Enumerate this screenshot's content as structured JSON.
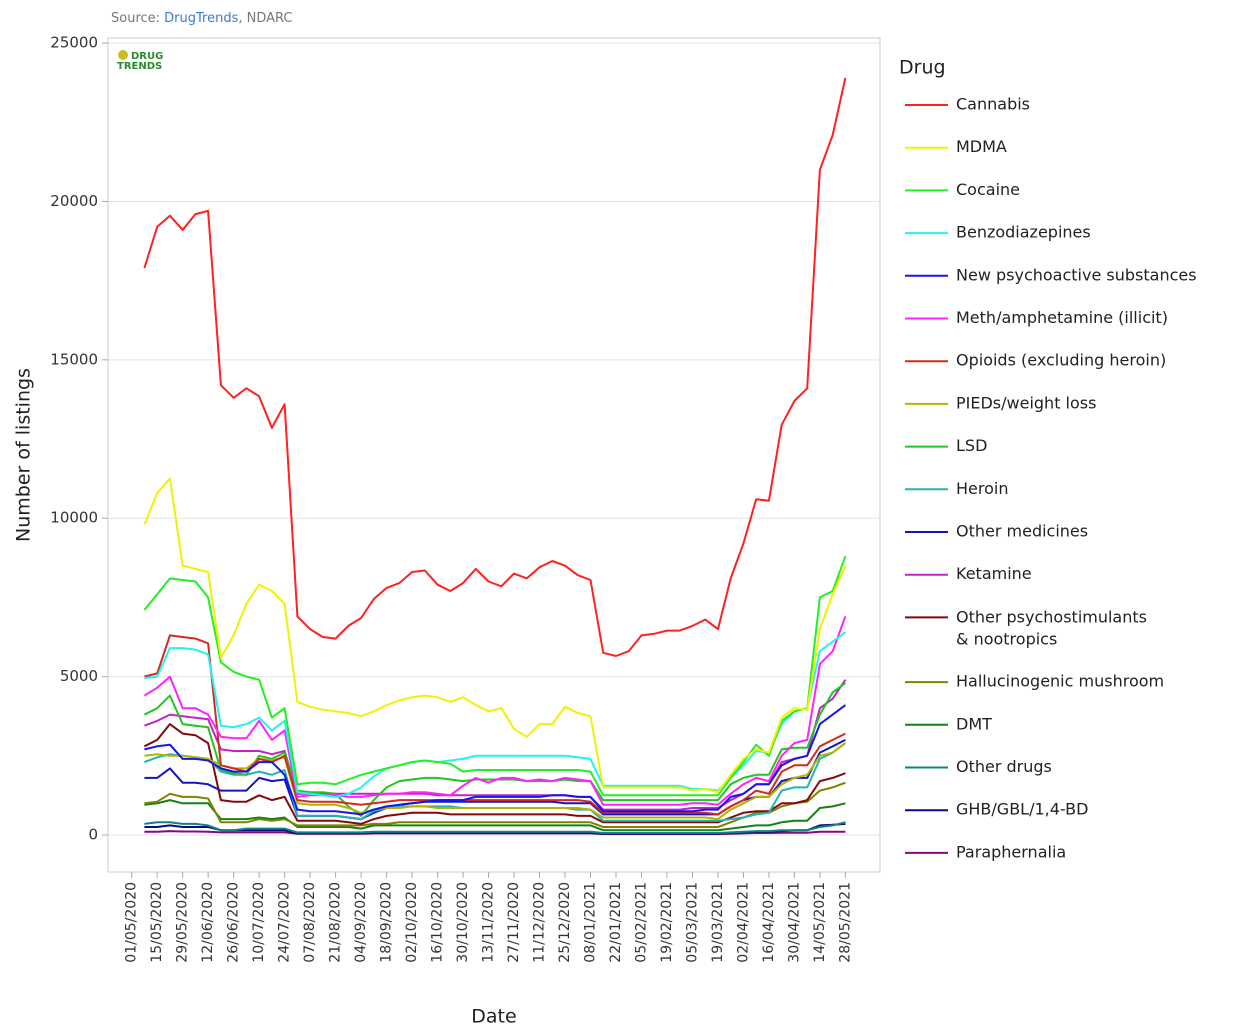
{
  "source": {
    "label": "Source:",
    "link": "DrugTrends",
    "suffix": ", NDARC"
  },
  "logo": [
    "DRUG",
    "TRENDS"
  ],
  "chart_data": {
    "type": "line",
    "xlabel": "Date",
    "ylabel": "Number of listings",
    "legend_title": "Drug",
    "legend": "right",
    "grid": true,
    "xlim": [
      "18/04/2020",
      "16/06/2021"
    ],
    "ylim": [
      -1170,
      25160
    ],
    "yticks": [
      0,
      5000,
      10000,
      15000,
      20000,
      25000
    ],
    "xticks": [
      "01/05/2020",
      "15/05/2020",
      "29/05/2020",
      "12/06/2020",
      "26/06/2020",
      "10/07/2020",
      "24/07/2020",
      "07/08/2020",
      "21/08/2020",
      "04/09/2020",
      "18/09/2020",
      "02/10/2020",
      "16/10/2020",
      "30/10/2020",
      "13/11/2020",
      "27/11/2020",
      "11/12/2020",
      "25/12/2020",
      "08/01/2021",
      "22/01/2021",
      "05/02/2021",
      "19/02/2021",
      "05/03/2021",
      "19/03/2021",
      "02/04/2021",
      "16/04/2021",
      "30/04/2021",
      "14/05/2021",
      "28/05/2021"
    ],
    "x": [
      "08/05/2020",
      "15/05/2020",
      "22/05/2020",
      "29/05/2020",
      "05/06/2020",
      "12/06/2020",
      "19/06/2020",
      "26/06/2020",
      "03/07/2020",
      "10/07/2020",
      "17/07/2020",
      "24/07/2020",
      "31/07/2020",
      "07/08/2020",
      "14/08/2020",
      "21/08/2020",
      "28/08/2020",
      "04/09/2020",
      "11/09/2020",
      "18/09/2020",
      "25/09/2020",
      "02/10/2020",
      "09/10/2020",
      "16/10/2020",
      "23/10/2020",
      "30/10/2020",
      "06/11/2020",
      "13/11/2020",
      "20/11/2020",
      "27/11/2020",
      "04/12/2020",
      "11/12/2020",
      "18/12/2020",
      "25/12/2020",
      "01/01/2021",
      "08/01/2021",
      "15/01/2021",
      "22/01/2021",
      "29/01/2021",
      "05/02/2021",
      "12/02/2021",
      "19/02/2021",
      "26/02/2021",
      "05/03/2021",
      "12/03/2021",
      "19/03/2021",
      "26/03/2021",
      "02/04/2021",
      "09/04/2021",
      "16/04/2021",
      "23/04/2021",
      "30/04/2021",
      "07/05/2021",
      "14/05/2021",
      "21/05/2021",
      "28/05/2021"
    ],
    "series": [
      {
        "name": "Cannabis",
        "color": "#ff2020",
        "values": [
          17900,
          19200,
          19550,
          19100,
          19600,
          19700,
          14200,
          13800,
          14100,
          13850,
          12850,
          13600,
          6900,
          6500,
          6250,
          6200,
          6600,
          6850,
          7450,
          7800,
          7950,
          8300,
          8350,
          7900,
          7700,
          7950,
          8400,
          8000,
          7850,
          8250,
          8100,
          8450,
          8650,
          8500,
          8200,
          8050,
          5750,
          5650,
          5800,
          6300,
          6350,
          6450,
          6450,
          6600,
          6800,
          6500,
          8100,
          9200,
          10600,
          10550,
          12950,
          13700,
          14100,
          21000,
          22100,
          23900
        ]
      },
      {
        "name": "MDMA",
        "color": "#f2f200",
        "values": [
          9800,
          10800,
          11250,
          8500,
          8400,
          8300,
          5600,
          6300,
          7300,
          7900,
          7700,
          7300,
          4200,
          4050,
          3950,
          3900,
          3850,
          3750,
          3900,
          4100,
          4250,
          4350,
          4400,
          4350,
          4200,
          4350,
          4100,
          3900,
          4000,
          3350,
          3100,
          3500,
          3500,
          4050,
          3850,
          3750,
          1500,
          1500,
          1500,
          1500,
          1500,
          1500,
          1500,
          1400,
          1450,
          1350,
          1900,
          2400,
          2700,
          2600,
          3700,
          4000,
          3950,
          6500,
          7600,
          8500
        ]
      },
      {
        "name": "Cocaine",
        "color": "#22f022",
        "values": [
          7100,
          7600,
          8100,
          8050,
          8000,
          7500,
          5450,
          5150,
          5000,
          4900,
          3700,
          4000,
          1600,
          1650,
          1650,
          1600,
          1750,
          1900,
          2000,
          2100,
          2200,
          2300,
          2350,
          2300,
          2250,
          2000,
          2050,
          2050,
          2050,
          2050,
          2050,
          2050,
          2050,
          2050,
          2050,
          2000,
          1250,
          1250,
          1250,
          1250,
          1250,
          1250,
          1250,
          1250,
          1250,
          1250,
          1800,
          2300,
          2850,
          2500,
          3600,
          3900,
          4000,
          7500,
          7700,
          8800
        ]
      },
      {
        "name": "Benzodiazepines",
        "color": "#22f2f2",
        "values": [
          4950,
          5000,
          5900,
          5900,
          5850,
          5700,
          3450,
          3400,
          3500,
          3700,
          3300,
          3600,
          1350,
          1300,
          1250,
          1200,
          1300,
          1500,
          1850,
          2100,
          2200,
          2300,
          2350,
          2300,
          2350,
          2400,
          2500,
          2500,
          2500,
          2500,
          2500,
          2500,
          2500,
          2500,
          2450,
          2400,
          1550,
          1550,
          1550,
          1550,
          1550,
          1550,
          1550,
          1450,
          1450,
          1400,
          1800,
          2200,
          2650,
          2600,
          3500,
          3900,
          4000,
          5800,
          6100,
          6400
        ]
      },
      {
        "name": "New psychoactive substances",
        "color": "#1515ee",
        "values": [
          2700,
          2800,
          2850,
          2400,
          2400,
          2350,
          2100,
          2000,
          2000,
          2300,
          2300,
          1900,
          800,
          750,
          750,
          750,
          700,
          650,
          800,
          900,
          950,
          1000,
          1050,
          1100,
          1100,
          1100,
          1200,
          1200,
          1200,
          1200,
          1200,
          1200,
          1250,
          1250,
          1200,
          1200,
          750,
          750,
          750,
          750,
          750,
          750,
          750,
          750,
          800,
          800,
          1200,
          1300,
          1600,
          1600,
          2200,
          2400,
          2500,
          3500,
          3800,
          4100
        ]
      },
      {
        "name": "Meth/amphetamine (illicit)",
        "color": "#ff22ff",
        "values": [
          4400,
          4650,
          5000,
          4000,
          4000,
          3800,
          3100,
          3050,
          3050,
          3600,
          3000,
          3300,
          1200,
          1250,
          1250,
          1250,
          1200,
          1200,
          1250,
          1300,
          1300,
          1350,
          1350,
          1300,
          1250,
          1550,
          1800,
          1650,
          1800,
          1800,
          1700,
          1750,
          1700,
          1800,
          1750,
          1700,
          950,
          950,
          950,
          950,
          950,
          950,
          950,
          1000,
          1000,
          950,
          1300,
          1600,
          1800,
          1700,
          2500,
          2900,
          3000,
          5400,
          5800,
          6900
        ]
      },
      {
        "name": "Opioids (excluding heroin)",
        "color": "#d42a1e",
        "values": [
          5000,
          5100,
          6300,
          6250,
          6200,
          6050,
          2200,
          2100,
          2000,
          2400,
          2300,
          2500,
          1100,
          1050,
          1050,
          1050,
          1000,
          950,
          1000,
          1050,
          1100,
          1100,
          1100,
          1100,
          1100,
          1100,
          1100,
          1100,
          1100,
          1100,
          1100,
          1100,
          1100,
          1100,
          1100,
          1050,
          700,
          700,
          700,
          700,
          700,
          700,
          700,
          700,
          700,
          650,
          900,
          1100,
          1400,
          1300,
          2000,
          2200,
          2200,
          2800,
          3000,
          3200
        ]
      },
      {
        "name": "PIEDs/weight loss",
        "color": "#b4b400",
        "values": [
          2500,
          2550,
          2500,
          2500,
          2450,
          2400,
          2200,
          2100,
          2100,
          2400,
          2350,
          2450,
          1000,
          950,
          950,
          950,
          850,
          700,
          800,
          850,
          850,
          900,
          900,
          850,
          850,
          850,
          850,
          850,
          850,
          850,
          850,
          850,
          850,
          850,
          850,
          800,
          550,
          550,
          550,
          550,
          550,
          550,
          550,
          550,
          550,
          500,
          800,
          1000,
          1200,
          1200,
          1600,
          1800,
          1900,
          2500,
          2600,
          2900
        ]
      },
      {
        "name": "LSD",
        "color": "#22c422",
        "values": [
          3800,
          4000,
          4400,
          3500,
          3450,
          3400,
          2050,
          1950,
          1900,
          2500,
          2400,
          2600,
          1400,
          1350,
          1350,
          1300,
          900,
          600,
          1100,
          1500,
          1700,
          1750,
          1800,
          1800,
          1750,
          1700,
          1750,
          1750,
          1750,
          1750,
          1700,
          1700,
          1700,
          1750,
          1700,
          1700,
          1100,
          1100,
          1100,
          1100,
          1100,
          1100,
          1100,
          1100,
          1100,
          1100,
          1600,
          1800,
          1900,
          1900,
          2700,
          2750,
          2750,
          3800,
          4500,
          4800
        ]
      },
      {
        "name": "Heroin",
        "color": "#22b4b4",
        "values": [
          2300,
          2450,
          2550,
          2500,
          2450,
          2400,
          2000,
          1900,
          1900,
          2000,
          1900,
          2050,
          600,
          600,
          600,
          600,
          550,
          500,
          750,
          850,
          900,
          900,
          900,
          900,
          900,
          850,
          850,
          850,
          850,
          850,
          850,
          850,
          850,
          850,
          800,
          800,
          450,
          450,
          450,
          450,
          450,
          450,
          450,
          450,
          450,
          450,
          500,
          550,
          650,
          700,
          1400,
          1500,
          1500,
          2400,
          2600,
          2900
        ]
      },
      {
        "name": "Other medicines",
        "color": "#1515c0",
        "values": [
          1800,
          1800,
          2100,
          1650,
          1650,
          1600,
          1400,
          1400,
          1400,
          1800,
          1700,
          1750,
          600,
          600,
          600,
          600,
          550,
          500,
          700,
          850,
          950,
          1000,
          1050,
          1050,
          1050,
          1050,
          1050,
          1050,
          1050,
          1050,
          1050,
          1050,
          1050,
          1000,
          1000,
          1000,
          650,
          650,
          650,
          650,
          650,
          650,
          650,
          650,
          650,
          650,
          900,
          1100,
          1200,
          1200,
          1700,
          1800,
          1800,
          2600,
          2800,
          3000
        ]
      },
      {
        "name": "Ketamine",
        "color": "#c422c4",
        "values": [
          3450,
          3600,
          3800,
          3750,
          3700,
          3650,
          2700,
          2650,
          2650,
          2650,
          2550,
          2650,
          1300,
          1300,
          1300,
          1300,
          1300,
          1300,
          1300,
          1300,
          1300,
          1300,
          1300,
          1250,
          1250,
          1250,
          1250,
          1250,
          1250,
          1250,
          1250,
          1250,
          1250,
          1250,
          1200,
          1200,
          800,
          800,
          800,
          800,
          800,
          800,
          800,
          850,
          850,
          850,
          1100,
          1300,
          1600,
          1600,
          2300,
          2400,
          2500,
          4000,
          4300,
          4900
        ]
      },
      {
        "name": "Other psychostimulants & nootropics",
        "color": "#820a0a",
        "values": [
          2800,
          3000,
          3500,
          3200,
          3150,
          2900,
          1100,
          1050,
          1050,
          1250,
          1100,
          1200,
          450,
          450,
          450,
          450,
          400,
          350,
          500,
          600,
          650,
          700,
          700,
          700,
          650,
          650,
          650,
          650,
          650,
          650,
          650,
          650,
          650,
          650,
          600,
          600,
          400,
          400,
          400,
          400,
          400,
          400,
          400,
          400,
          400,
          400,
          550,
          700,
          750,
          750,
          1000,
          1000,
          1100,
          1700,
          1800,
          1950
        ]
      },
      {
        "name": "Hallucinogenic mushroom",
        "color": "#828200",
        "values": [
          1000,
          1050,
          1300,
          1200,
          1200,
          1150,
          400,
          400,
          400,
          500,
          450,
          500,
          300,
          300,
          300,
          300,
          300,
          300,
          350,
          350,
          400,
          400,
          400,
          400,
          400,
          400,
          400,
          400,
          400,
          400,
          400,
          400,
          400,
          400,
          400,
          400,
          250,
          250,
          250,
          250,
          250,
          250,
          250,
          250,
          250,
          250,
          400,
          550,
          700,
          700,
          900,
          1000,
          1050,
          1400,
          1500,
          1650
        ]
      },
      {
        "name": "DMT",
        "color": "#128212",
        "values": [
          950,
          1000,
          1100,
          1000,
          1000,
          1000,
          500,
          500,
          500,
          550,
          500,
          550,
          250,
          250,
          250,
          250,
          250,
          200,
          300,
          300,
          300,
          300,
          300,
          300,
          300,
          300,
          300,
          300,
          300,
          300,
          300,
          300,
          300,
          300,
          300,
          300,
          150,
          150,
          150,
          150,
          150,
          150,
          150,
          150,
          150,
          150,
          200,
          250,
          300,
          300,
          400,
          450,
          450,
          850,
          900,
          1000
        ]
      },
      {
        "name": "Other drugs",
        "color": "#128282",
        "values": [
          350,
          400,
          400,
          350,
          350,
          300,
          150,
          150,
          200,
          200,
          200,
          200,
          80,
          80,
          80,
          80,
          80,
          80,
          100,
          100,
          100,
          100,
          100,
          100,
          100,
          100,
          100,
          100,
          100,
          100,
          100,
          100,
          100,
          100,
          100,
          100,
          60,
          60,
          60,
          60,
          60,
          60,
          60,
          60,
          60,
          60,
          80,
          100,
          120,
          120,
          150,
          150,
          150,
          250,
          300,
          400
        ]
      },
      {
        "name": "GHB/GBL/1,4-BD",
        "color": "#0a0a82",
        "values": [
          250,
          250,
          300,
          250,
          250,
          250,
          150,
          150,
          150,
          150,
          150,
          150,
          50,
          50,
          50,
          50,
          50,
          50,
          60,
          60,
          60,
          60,
          60,
          60,
          60,
          60,
          60,
          60,
          60,
          60,
          60,
          60,
          60,
          60,
          60,
          60,
          40,
          40,
          40,
          40,
          40,
          40,
          40,
          40,
          40,
          40,
          60,
          80,
          100,
          100,
          120,
          150,
          150,
          300,
          320,
          350
        ]
      },
      {
        "name": "Paraphernalia",
        "color": "#820a82",
        "values": [
          100,
          100,
          120,
          110,
          110,
          100,
          80,
          80,
          80,
          80,
          80,
          80,
          40,
          40,
          40,
          40,
          40,
          40,
          50,
          50,
          50,
          50,
          50,
          50,
          50,
          50,
          50,
          50,
          50,
          50,
          50,
          50,
          50,
          50,
          50,
          50,
          30,
          30,
          30,
          30,
          30,
          30,
          30,
          30,
          30,
          30,
          40,
          50,
          60,
          60,
          70,
          70,
          70,
          100,
          100,
          100
        ]
      }
    ]
  }
}
